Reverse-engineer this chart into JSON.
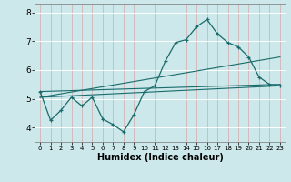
{
  "title": "",
  "xlabel": "Humidex (Indice chaleur)",
  "background_color": "#cce8ea",
  "line_color": "#1a6b6b",
  "grid_color_white": "#ffffff",
  "grid_color_pink": "#d4a8a8",
  "xlim": [
    -0.5,
    23.5
  ],
  "ylim": [
    3.5,
    8.3
  ],
  "yticks": [
    4,
    5,
    6,
    7,
    8
  ],
  "xticks": [
    0,
    1,
    2,
    3,
    4,
    5,
    6,
    7,
    8,
    9,
    10,
    11,
    12,
    13,
    14,
    15,
    16,
    17,
    18,
    19,
    20,
    21,
    22,
    23
  ],
  "series_main": {
    "x": [
      0,
      1,
      2,
      3,
      4,
      5,
      6,
      7,
      8,
      9,
      10,
      11,
      12,
      13,
      14,
      15,
      16,
      17,
      18,
      19,
      20,
      21,
      22,
      23
    ],
    "y": [
      5.25,
      4.25,
      4.6,
      5.05,
      4.75,
      5.05,
      4.3,
      4.1,
      3.85,
      4.45,
      5.25,
      5.45,
      6.3,
      6.95,
      7.05,
      7.5,
      7.75,
      7.25,
      6.95,
      6.8,
      6.45,
      5.75,
      5.5,
      5.45
    ]
  },
  "trend1": {
    "x": [
      0,
      23
    ],
    "y": [
      5.05,
      5.45
    ]
  },
  "trend2": {
    "x": [
      0,
      23
    ],
    "y": [
      5.05,
      6.45
    ]
  },
  "trend3": {
    "x": [
      0,
      23
    ],
    "y": [
      5.25,
      5.5
    ]
  }
}
